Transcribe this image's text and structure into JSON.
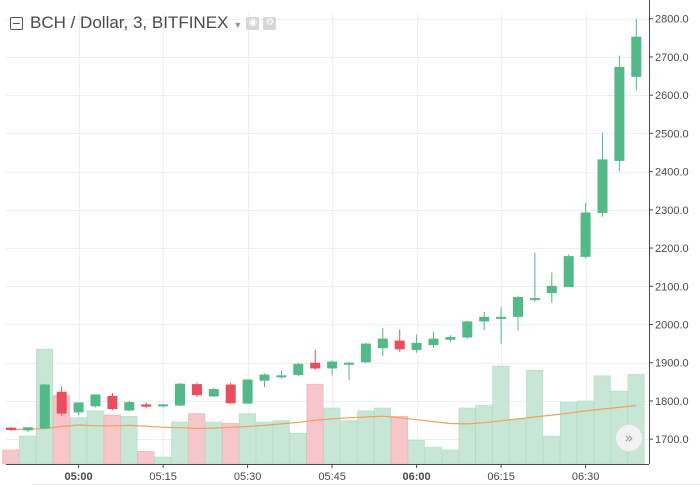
{
  "chart_data": {
    "type": "candlestick",
    "title": "BCH / Dollar, 3, BITFINEX",
    "symbol": "BCH / Dollar",
    "interval": "3",
    "exchange": "BITFINEX",
    "price_axis": {
      "range": [
        1635,
        2815
      ],
      "tick_values": [
        1700,
        1800,
        1900,
        2000,
        2100,
        2200,
        2300,
        2400,
        2500,
        2600,
        2700,
        2800
      ],
      "tick_labels": [
        "1700.0",
        "1800.0",
        "1900.0",
        "2000.0",
        "2100.0",
        "2200.0",
        "2300.0",
        "2400.0",
        "2500.0",
        "2600.0",
        "2700.0",
        "2800.0"
      ]
    },
    "time_axis": {
      "range": [
        0,
        38.1
      ],
      "ticks": [
        {
          "bar": 4,
          "label": "05:00",
          "bold": true
        },
        {
          "bar": 9,
          "label": "05:15",
          "bold": false
        },
        {
          "bar": 14,
          "label": "05:30",
          "bold": false
        },
        {
          "bar": 19,
          "label": "05:45",
          "bold": false
        },
        {
          "bar": 24,
          "label": "06:00",
          "bold": true
        },
        {
          "bar": 29,
          "label": "06:15",
          "bold": false
        },
        {
          "bar": 34,
          "label": "06:30",
          "bold": false
        }
      ]
    },
    "volume_range": [
      0,
      100
    ],
    "candles": [
      {
        "o": 1730,
        "h": 1732,
        "l": 1721,
        "c": 1724
      },
      {
        "o": 1723,
        "h": 1732,
        "l": 1718,
        "c": 1731
      },
      {
        "o": 1728,
        "h": 1845,
        "l": 1726,
        "c": 1843
      },
      {
        "o": 1824,
        "h": 1838,
        "l": 1760,
        "c": 1767
      },
      {
        "o": 1770,
        "h": 1796,
        "l": 1763,
        "c": 1796
      },
      {
        "o": 1786,
        "h": 1817,
        "l": 1783,
        "c": 1817
      },
      {
        "o": 1813,
        "h": 1821,
        "l": 1776,
        "c": 1779
      },
      {
        "o": 1775,
        "h": 1800,
        "l": 1773,
        "c": 1797
      },
      {
        "o": 1791,
        "h": 1796,
        "l": 1781,
        "c": 1785
      },
      {
        "o": 1786,
        "h": 1791,
        "l": 1783,
        "c": 1791
      },
      {
        "o": 1788,
        "h": 1847,
        "l": 1786,
        "c": 1845
      },
      {
        "o": 1844,
        "h": 1848,
        "l": 1811,
        "c": 1815
      },
      {
        "o": 1812,
        "h": 1834,
        "l": 1810,
        "c": 1831
      },
      {
        "o": 1843,
        "h": 1848,
        "l": 1793,
        "c": 1794
      },
      {
        "o": 1793,
        "h": 1856,
        "l": 1793,
        "c": 1856
      },
      {
        "o": 1853,
        "h": 1872,
        "l": 1836,
        "c": 1869
      },
      {
        "o": 1867,
        "h": 1880,
        "l": 1858,
        "c": 1867
      },
      {
        "o": 1868,
        "h": 1900,
        "l": 1865,
        "c": 1897
      },
      {
        "o": 1900,
        "h": 1934,
        "l": 1881,
        "c": 1885
      },
      {
        "o": 1885,
        "h": 1906,
        "l": 1867,
        "c": 1903
      },
      {
        "o": 1900,
        "h": 1902,
        "l": 1855,
        "c": 1900
      },
      {
        "o": 1901,
        "h": 1952,
        "l": 1899,
        "c": 1950
      },
      {
        "o": 1938,
        "h": 1991,
        "l": 1918,
        "c": 1963
      },
      {
        "o": 1958,
        "h": 1987,
        "l": 1929,
        "c": 1935
      },
      {
        "o": 1933,
        "h": 1974,
        "l": 1926,
        "c": 1952
      },
      {
        "o": 1946,
        "h": 1980,
        "l": 1939,
        "c": 1963
      },
      {
        "o": 1960,
        "h": 1972,
        "l": 1955,
        "c": 1967
      },
      {
        "o": 1966,
        "h": 2010,
        "l": 1963,
        "c": 2008
      },
      {
        "o": 2008,
        "h": 2033,
        "l": 1985,
        "c": 2020
      },
      {
        "o": 2019,
        "h": 2045,
        "l": 1950,
        "c": 2020
      },
      {
        "o": 2020,
        "h": 2074,
        "l": 1984,
        "c": 2072
      },
      {
        "o": 2066,
        "h": 2188,
        "l": 2060,
        "c": 2069
      },
      {
        "o": 2082,
        "h": 2136,
        "l": 2057,
        "c": 2101
      },
      {
        "o": 2098,
        "h": 2183,
        "l": 2098,
        "c": 2179
      },
      {
        "o": 2177,
        "h": 2318,
        "l": 2173,
        "c": 2293
      },
      {
        "o": 2292,
        "h": 2502,
        "l": 2282,
        "c": 2432
      },
      {
        "o": 2428,
        "h": 2704,
        "l": 2401,
        "c": 2674
      },
      {
        "o": 2648,
        "h": 2800,
        "l": 2612,
        "c": 2753
      }
    ],
    "volume": [
      10,
      20,
      82,
      49,
      33,
      38,
      35,
      34,
      9,
      5,
      30,
      36,
      30,
      29,
      36,
      30,
      31,
      22,
      57,
      40,
      31,
      38,
      40,
      34,
      17,
      12,
      10,
      40,
      42,
      70,
      32,
      67,
      20,
      44,
      45,
      63,
      52,
      64
    ],
    "moving_average": [
      1725,
      1726,
      1728,
      1733,
      1737,
      1735,
      1735,
      1736,
      1734,
      1731,
      1730,
      1728,
      1729,
      1731,
      1733,
      1736,
      1740,
      1744,
      1749,
      1753,
      1756,
      1758,
      1760,
      1756,
      1751,
      1746,
      1741,
      1740,
      1743,
      1748,
      1753,
      1758,
      1763,
      1768,
      1774,
      1779,
      1783,
      1788
    ],
    "colors": {
      "up": "#53b987",
      "down": "#eb4d5c",
      "volume_up": "#c7e6d6",
      "volume_down": "#f7c6cb",
      "moving_average": "#f0a060",
      "grid": "#ecf0f2",
      "axis": "#4a4a4a"
    }
  }
}
